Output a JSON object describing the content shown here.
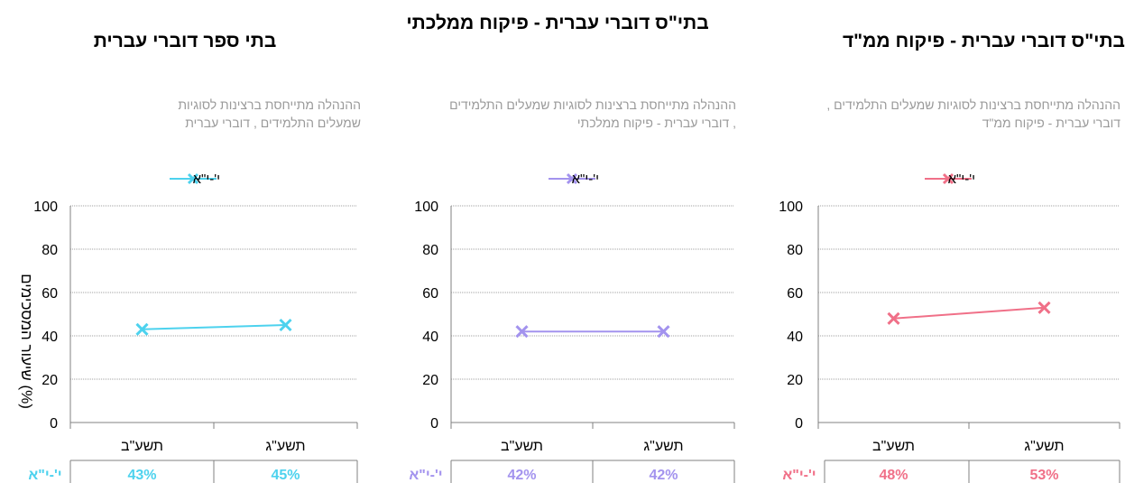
{
  "chart_data": [
    {
      "type": "line",
      "title": "בתי ספר דוברי עברית",
      "subtitle": "ההנהלה מתייחסת ברצינות לסוגיות שמעלים התלמידים , דוברי עברית",
      "ylabel": "שיעור המסכימים (%)",
      "categories": [
        "תשע\"ב",
        "תשע\"ג"
      ],
      "series": [
        {
          "name": "י'-י\"א",
          "values": [
            43,
            45
          ]
        }
      ],
      "value_labels": [
        "43%",
        "45%"
      ],
      "ylim": [
        0,
        100
      ],
      "yticks": [
        "0",
        "20",
        "40",
        "60",
        "80",
        "100"
      ],
      "color": "#4dd2ee",
      "grid": true,
      "legend": "top"
    },
    {
      "type": "line",
      "title": "בתי\"ס דוברי עברית - פיקוח ממלכתי",
      "subtitle": "ההנהלה מתייחסת ברצינות לסוגיות שמעלים התלמידים , דוברי עברית - פיקוח ממלכתי",
      "ylabel": "",
      "categories": [
        "תשע\"ב",
        "תשע\"ג"
      ],
      "series": [
        {
          "name": "י'-י\"א",
          "values": [
            42,
            42
          ]
        }
      ],
      "value_labels": [
        "42%",
        "42%"
      ],
      "ylim": [
        0,
        100
      ],
      "yticks": [
        "0",
        "20",
        "40",
        "60",
        "80",
        "100"
      ],
      "color": "#a393ee",
      "grid": true,
      "legend": "top"
    },
    {
      "type": "line",
      "title": "בתי\"ס דוברי עברית - פיקוח ממ\"ד",
      "subtitle": "ההנהלה מתייחסת ברצינות לסוגיות שמעלים התלמידים , דוברי עברית - פיקוח ממ\"ד",
      "ylabel": "",
      "categories": [
        "תשע\"ב",
        "תשע\"ג"
      ],
      "series": [
        {
          "name": "י'-י\"א",
          "values": [
            48,
            53
          ]
        }
      ],
      "value_labels": [
        "48%",
        "53%"
      ],
      "ylim": [
        0,
        100
      ],
      "yticks": [
        "0",
        "20",
        "40",
        "60",
        "80",
        "100"
      ],
      "color": "#f07088",
      "grid": true,
      "legend": "top"
    }
  ]
}
